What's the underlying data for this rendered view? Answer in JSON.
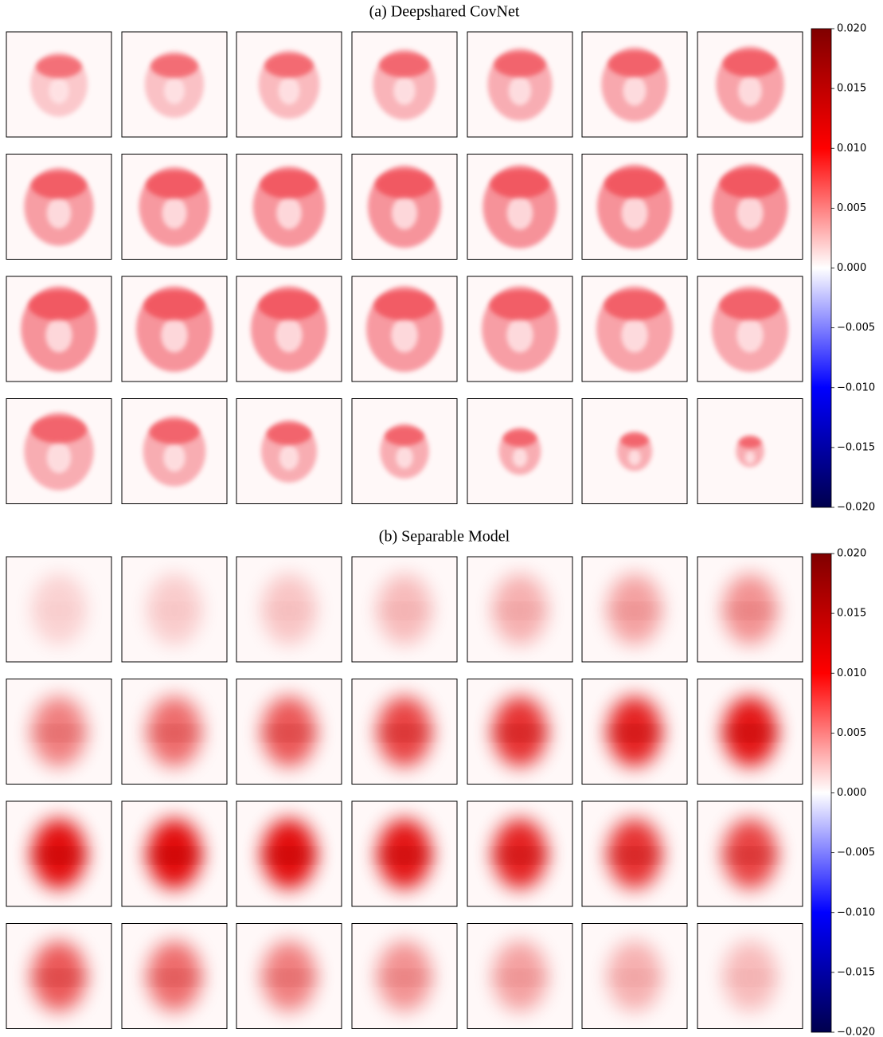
{
  "chart_data": [
    {
      "type": "heatmap",
      "title": "(a) Deepshared CovNet",
      "colormap": "seismic",
      "clim": [
        -0.02,
        0.02
      ],
      "cticks": [
        {
          "value": 0.02,
          "label": "0.020"
        },
        {
          "value": 0.015,
          "label": "0.015"
        },
        {
          "value": 0.01,
          "label": "0.010"
        },
        {
          "value": 0.005,
          "label": "0.005"
        },
        {
          "value": 0,
          "label": "0.000"
        },
        {
          "value": -0.005,
          "label": "−0.005"
        },
        {
          "value": -0.01,
          "label": "−0.010"
        },
        {
          "value": -0.015,
          "label": "−0.015"
        },
        {
          "value": -0.02,
          "label": "−0.020"
        }
      ]
    },
    {
      "type": "heatmap",
      "title": "(b) Separable Model",
      "colormap": "seismic",
      "clim": [
        -0.02,
        0.02
      ],
      "cticks": [
        {
          "value": 0.02,
          "label": "0.020"
        },
        {
          "value": 0.015,
          "label": "0.015"
        },
        {
          "value": 0.01,
          "label": "0.010"
        },
        {
          "value": 0.005,
          "label": "0.005"
        },
        {
          "value": 0,
          "label": "0.000"
        },
        {
          "value": -0.005,
          "label": "−0.005"
        },
        {
          "value": -0.01,
          "label": "−0.010"
        },
        {
          "value": -0.015,
          "label": "−0.015"
        },
        {
          "value": -0.02,
          "label": "−0.020"
        }
      ]
    }
  ]
}
